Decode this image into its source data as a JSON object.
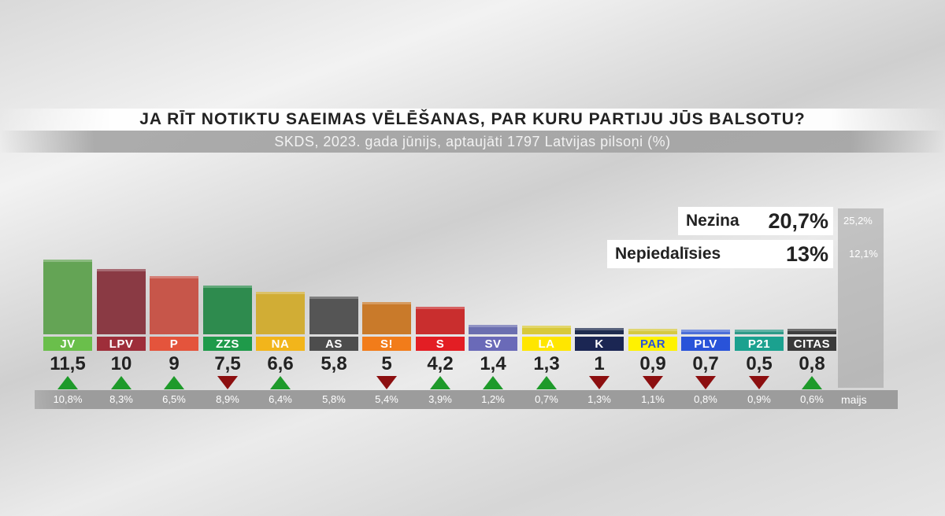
{
  "header": {
    "title": "JA RĪT NOTIKTU SAEIMAS VĒLĒŠANAS, PAR KURU PARTIJU JŪS BALSOTU?",
    "subtitle": "SKDS, 2023. gada jūnijs, aptaujāti 1797 Latvijas pilsoņi (%)"
  },
  "side": {
    "nezina": {
      "label": "Nezina",
      "value": "20,7%",
      "previous": "25,2%"
    },
    "nepiedalisies": {
      "label": "Nepiedalīsies",
      "value": "13%",
      "previous": "12,1%"
    }
  },
  "previous_period_label": "maijs",
  "chart_data": {
    "type": "bar",
    "title": "JA RĪT NOTIKTU SAEIMAS VĒLĒŠANAS, PAR KURU PARTIJU JŪS BALSOTU?",
    "subtitle": "SKDS, 2023. gada jūnijs, aptaujāti 1797 Latvijas pilsoņi (%)",
    "categories": [
      "JV",
      "LPV",
      "P",
      "ZZS",
      "NA",
      "AS",
      "S!",
      "S",
      "SV",
      "LA",
      "K",
      "PAR",
      "PLV",
      "P21",
      "CITAS"
    ],
    "values": [
      11.5,
      10,
      9,
      7.5,
      6.6,
      5.8,
      5,
      4.2,
      1.4,
      1.3,
      1,
      0.9,
      0.7,
      0.5,
      0.8
    ],
    "value_labels": [
      "11,5",
      "10",
      "9",
      "7,5",
      "6,6",
      "5,8",
      "5",
      "4,2",
      "1,4",
      "1,3",
      "1",
      "0,9",
      "0,7",
      "0,5",
      "0,8"
    ],
    "previous_values": [
      10.8,
      8.3,
      6.5,
      8.9,
      6.4,
      5.8,
      5.4,
      3.9,
      1.2,
      0.7,
      1.3,
      1.1,
      0.8,
      0.9,
      0.6
    ],
    "previous_labels": [
      "10,8%",
      "8,3%",
      "6,5%",
      "8,9%",
      "6,4%",
      "5,8%",
      "5,4%",
      "3,9%",
      "1,2%",
      "0,7%",
      "1,3%",
      "1,1%",
      "0,8%",
      "0,9%",
      "0,6%"
    ],
    "trend": [
      "up",
      "up",
      "up",
      "down",
      "up",
      "none",
      "down",
      "up",
      "up",
      "up",
      "down",
      "down",
      "down",
      "down",
      "up"
    ],
    "bar_colors": [
      "#64a455",
      "#8a3a44",
      "#c7564a",
      "#2e8b4e",
      "#d1ad35",
      "#555555",
      "#c97a2a",
      "#c92e2e",
      "#6b6fb0",
      "#d8c93a",
      "#1f2c4f",
      "#d6c942",
      "#4c6fd8",
      "#2f9a88",
      "#3e3e3e"
    ],
    "label_colors": [
      "#6abf4b",
      "#9e2e3a",
      "#e4543c",
      "#1f9a4a",
      "#f2b51b",
      "#4d4d4d",
      "#f27c1a",
      "#e31e24",
      "#6a6ab8",
      "#ffe600",
      "#1b2653",
      "#fff200",
      "#2953d9",
      "#1ba18f",
      "#3a3a3a"
    ],
    "label_text_colors": [
      "#ffffff",
      "#ffffff",
      "#ffffff",
      "#ffffff",
      "#ffffff",
      "#ffffff",
      "#ffffff",
      "#ffffff",
      "#ffffff",
      "#ffffff",
      "#ffffff",
      "#2953d9",
      "#ffffff",
      "#ffffff",
      "#ffffff"
    ],
    "trend_colors": {
      "up": "#1e9a2a",
      "down": "#8c0f10"
    },
    "ylim": [
      0,
      12
    ]
  }
}
